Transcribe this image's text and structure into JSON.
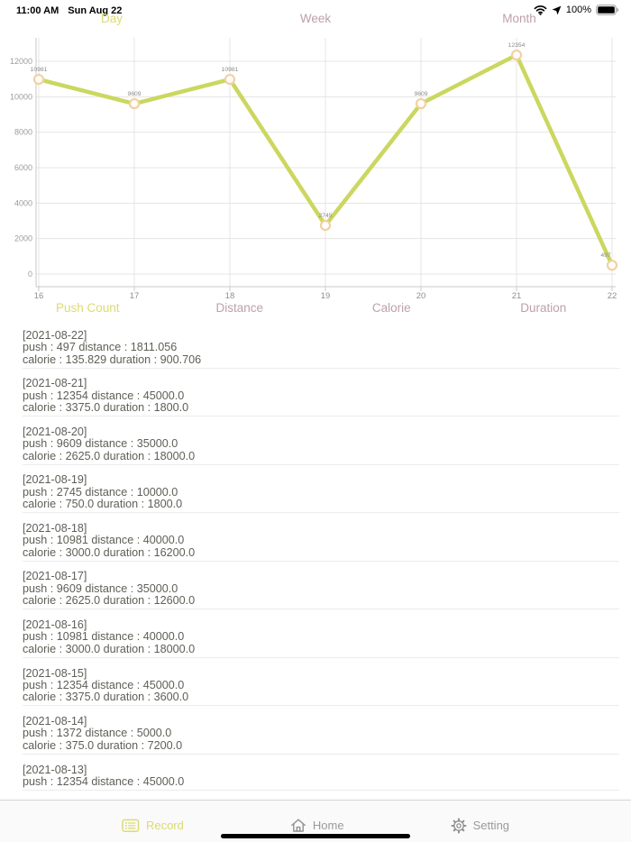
{
  "status_bar": {
    "time": "11:00 AM",
    "date": "Sun Aug 22",
    "battery_percent": "100%"
  },
  "period_tabs": {
    "items": [
      {
        "label": "Day",
        "active": true
      },
      {
        "label": "Week",
        "active": false
      },
      {
        "label": "Month",
        "active": false
      }
    ]
  },
  "chart_data": {
    "type": "line",
    "title": "",
    "xlabel": "",
    "ylabel": "",
    "categories": [
      "16",
      "17",
      "18",
      "19",
      "20",
      "21",
      "22"
    ],
    "values": [
      10981,
      9609,
      10981,
      2745,
      9609,
      12354,
      497
    ],
    "point_labels": [
      "10981",
      "9609",
      "10981",
      "2745",
      "9609",
      "12354",
      "497"
    ],
    "ylim": [
      0,
      12000
    ],
    "ytick_step": 2000,
    "ytick_labels": [
      "0",
      "2000",
      "4000",
      "6000",
      "8000",
      "10000",
      "12000"
    ],
    "grid": true,
    "legend": "none",
    "line_color": "#cbd75f",
    "marker_fill": "#ffffff",
    "marker_stroke": "#f3d0a2"
  },
  "metric_tabs": {
    "items": [
      {
        "label": "Push Count",
        "active": true
      },
      {
        "label": "Distance",
        "active": false
      },
      {
        "label": "Calorie",
        "active": false
      },
      {
        "label": "Duration",
        "active": false
      }
    ]
  },
  "record_labels": {
    "push": "push :",
    "distance": "distance :",
    "calorie": "calorie :",
    "duration": "duration :"
  },
  "records": [
    {
      "date": "[2021-08-22]",
      "push": "497",
      "distance": "1811.056",
      "calorie": "135.829",
      "duration": "900.706"
    },
    {
      "date": "[2021-08-21]",
      "push": "12354",
      "distance": "45000.0",
      "calorie": "3375.0",
      "duration": "1800.0"
    },
    {
      "date": "[2021-08-20]",
      "push": "9609",
      "distance": "35000.0",
      "calorie": "2625.0",
      "duration": "18000.0"
    },
    {
      "date": "[2021-08-19]",
      "push": "2745",
      "distance": "10000.0",
      "calorie": "750.0",
      "duration": "1800.0"
    },
    {
      "date": "[2021-08-18]",
      "push": "10981",
      "distance": "40000.0",
      "calorie": "3000.0",
      "duration": "16200.0"
    },
    {
      "date": "[2021-08-17]",
      "push": "9609",
      "distance": "35000.0",
      "calorie": "2625.0",
      "duration": "12600.0"
    },
    {
      "date": "[2021-08-16]",
      "push": "10981",
      "distance": "40000.0",
      "calorie": "3000.0",
      "duration": "18000.0"
    },
    {
      "date": "[2021-08-15]",
      "push": "12354",
      "distance": "45000.0",
      "calorie": "3375.0",
      "duration": "3600.0"
    },
    {
      "date": "[2021-08-14]",
      "push": "1372",
      "distance": "5000.0",
      "calorie": "375.0",
      "duration": "7200.0"
    },
    {
      "date": "[2021-08-13]",
      "push": "12354",
      "distance": "45000.0"
    }
  ],
  "tab_bar": {
    "items": [
      {
        "label": "Record",
        "icon": "record-icon",
        "active": true
      },
      {
        "label": "Home",
        "icon": "home-icon",
        "active": false
      },
      {
        "label": "Setting",
        "icon": "setting-icon",
        "active": false
      }
    ]
  },
  "colors": {
    "accent_active": "#dcdb72",
    "accent_inactive": "#bda0ad",
    "tab_inactive": "#9a9a9a",
    "axis": "#c8c8c8",
    "grid": "#e4e4e4",
    "record_text": "#5f5e56"
  }
}
